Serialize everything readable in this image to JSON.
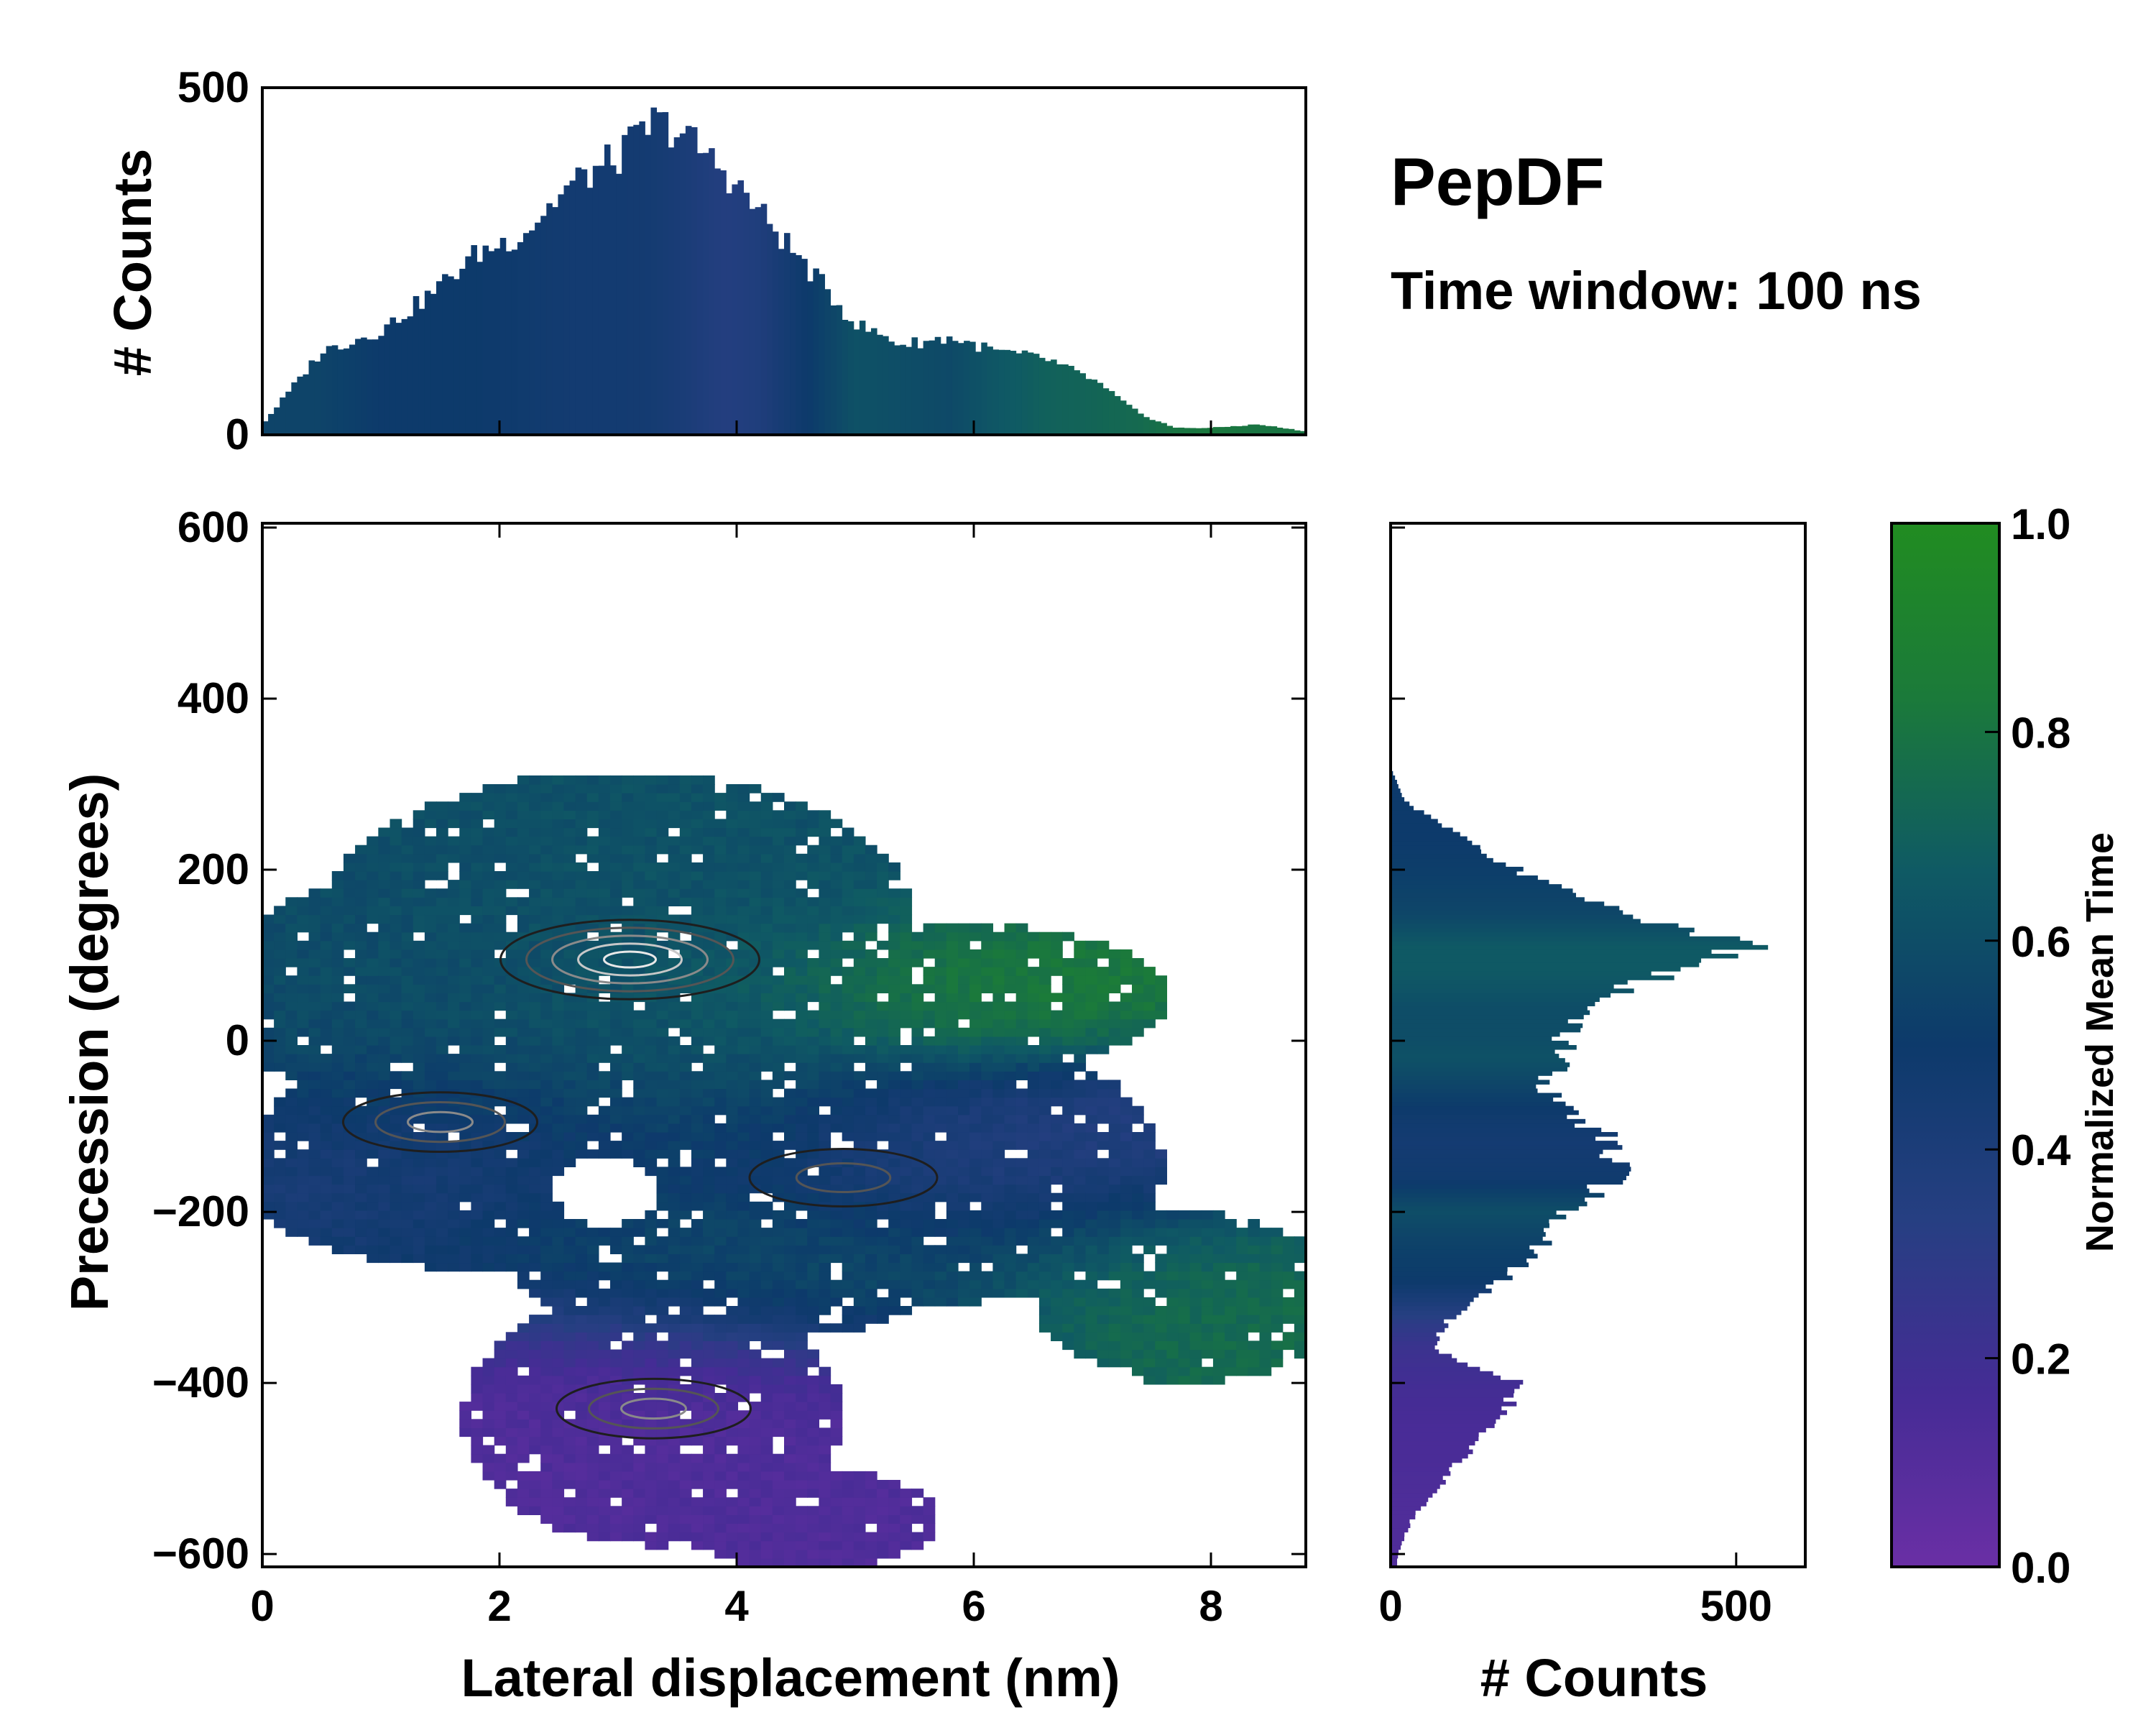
{
  "title": "PepDF",
  "subtitle": "Time window: 100 ns",
  "chart_data": [
    {
      "name": "joint",
      "type": "heatmap",
      "xlabel": "Lateral displacement (nm)",
      "ylabel": "Precession (degrees)",
      "xlim": [
        0,
        8.8
      ],
      "ylim": [
        -615,
        605
      ],
      "xticks": [
        0,
        2,
        4,
        6,
        8
      ],
      "xtick_labels": [
        "0",
        "2",
        "4",
        "6",
        "8"
      ],
      "yticks": [
        -600,
        -400,
        -200,
        0,
        200,
        400,
        600
      ],
      "ytick_labels": [
        "−600",
        "−400",
        "−200",
        "0",
        "200",
        "400",
        "600"
      ],
      "colorscale": "Normalized Mean Time (0 = purple, 0.5 = navy blue, 1 = green)",
      "regions": [
        {
          "x": 3.0,
          "y": 140,
          "sx": 1.8,
          "sy": 90,
          "t": 0.62
        },
        {
          "x": 1.0,
          "y": 60,
          "sx": 1.0,
          "sy": 100,
          "t": 0.58
        },
        {
          "x": 3.4,
          "y": -40,
          "sx": 1.3,
          "sy": 90,
          "t": 0.64
        },
        {
          "x": 5.9,
          "y": 60,
          "sx": 1.0,
          "sy": 50,
          "t": 0.86
        },
        {
          "x": 1.8,
          "y": -130,
          "sx": 1.3,
          "sy": 70,
          "t": 0.4
        },
        {
          "x": 5.7,
          "y": -150,
          "sx": 1.4,
          "sy": 80,
          "t": 0.36
        },
        {
          "x": 7.6,
          "y": -300,
          "sx": 0.9,
          "sy": 60,
          "t": 0.76
        },
        {
          "x": 4.3,
          "y": -260,
          "sx": 1.6,
          "sy": 60,
          "t": 0.68
        },
        {
          "x": 3.4,
          "y": -450,
          "sx": 1.4,
          "sy": 110,
          "t": 0.12
        }
      ],
      "density_peaks": [
        {
          "x": 3.1,
          "y": 95,
          "weight": 1.0
        },
        {
          "x": 1.5,
          "y": -95,
          "weight": 0.5
        },
        {
          "x": 3.3,
          "y": -430,
          "weight": 0.5
        },
        {
          "x": 4.9,
          "y": -160,
          "weight": 0.45
        }
      ]
    },
    {
      "name": "top-histogram",
      "type": "bar",
      "ylabel": "# Counts",
      "xlim": [
        0,
        8.8
      ],
      "ylim": [
        0,
        500
      ],
      "yticks": [
        0,
        500
      ],
      "ytick_labels": [
        "0",
        "500"
      ],
      "x": [
        0.0,
        0.5,
        1.0,
        1.4,
        1.8,
        2.2,
        2.6,
        3.0,
        3.3,
        3.5,
        3.9,
        4.2,
        4.6,
        5.0,
        5.4,
        5.8,
        6.2,
        6.6,
        7.0,
        7.4,
        7.7,
        8.0,
        8.4,
        8.8
      ],
      "values": [
        15,
        120,
        150,
        200,
        260,
        290,
        360,
        400,
        450,
        440,
        380,
        320,
        240,
        160,
        130,
        140,
        120,
        110,
        80,
        30,
        10,
        10,
        15,
        5
      ],
      "time": [
        0.55,
        0.55,
        0.5,
        0.5,
        0.5,
        0.48,
        0.46,
        0.46,
        0.45,
        0.42,
        0.35,
        0.38,
        0.5,
        0.62,
        0.6,
        0.58,
        0.65,
        0.7,
        0.72,
        0.75,
        0.8,
        0.82,
        0.8,
        0.8
      ]
    },
    {
      "name": "right-histogram",
      "type": "bar",
      "xlabel": "# Counts",
      "xlim": [
        0,
        600
      ],
      "xticks": [
        0,
        500
      ],
      "xtick_labels": [
        "0",
        "500"
      ],
      "y": [
        -600,
        -560,
        -500,
        -450,
        -400,
        -360,
        -330,
        -280,
        -230,
        -200,
        -160,
        -120,
        -90,
        -50,
        -20,
        0,
        40,
        80,
        110,
        150,
        200,
        240,
        280,
        320
      ],
      "values": [
        10,
        30,
        90,
        150,
        190,
        60,
        80,
        160,
        230,
        260,
        320,
        330,
        270,
        220,
        250,
        250,
        280,
        400,
        520,
        330,
        180,
        100,
        20,
        0
      ],
      "time": [
        0.12,
        0.12,
        0.14,
        0.15,
        0.18,
        0.22,
        0.3,
        0.5,
        0.55,
        0.6,
        0.48,
        0.45,
        0.48,
        0.56,
        0.62,
        0.6,
        0.6,
        0.66,
        0.66,
        0.56,
        0.52,
        0.5,
        0.5,
        0.5
      ]
    },
    {
      "name": "colorbar",
      "type": "colorbar",
      "label": "Normalized Mean Time",
      "range": [
        0,
        1
      ],
      "ticks": [
        0,
        0.2,
        0.4,
        0.6,
        0.8,
        1
      ],
      "tick_labels": [
        "0.0",
        "0.2",
        "0.4",
        "0.6",
        "0.8",
        "1.0"
      ],
      "stops": [
        "#6a2fa5",
        "#452c95",
        "#263f82",
        "#0d3a6b",
        "#0f5a64",
        "#1b7a3a",
        "#218c21"
      ]
    }
  ]
}
